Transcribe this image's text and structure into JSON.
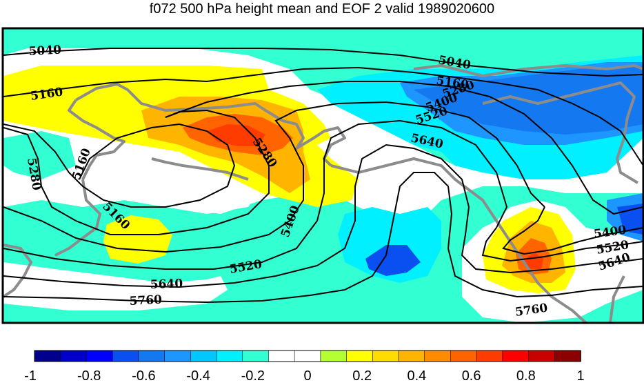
{
  "title": "f072 500 hPa height mean and EOF 2 valid 1989020600",
  "contour_labels": [
    "5040",
    "5040",
    "5160",
    "5160",
    "5160",
    "5160",
    "5280",
    "5280",
    "5280",
    "5400",
    "5400",
    "5400",
    "5520",
    "5520",
    "5520",
    "5640",
    "5640",
    "5640",
    "5760",
    "5760"
  ],
  "colorbar": {
    "colors": [
      "#00008c",
      "#0000c8",
      "#0000ff",
      "#0a50f0",
      "#1478f0",
      "#1e96ff",
      "#00c8ff",
      "#00f0ff",
      "#32ffd2",
      "#ffffff",
      "#ffffff",
      "#b4ff32",
      "#ffff00",
      "#ffdc00",
      "#ffb400",
      "#ff8c00",
      "#ff6400",
      "#ff3c00",
      "#ff0000",
      "#c80000",
      "#8c0000"
    ],
    "tick_labels": [
      "-1",
      "-0.8",
      "-0.6",
      "-0.4",
      "-0.2",
      "0",
      "0.2",
      "0.4",
      "0.6",
      "0.8",
      "1"
    ]
  },
  "colors": {
    "coastline": "#8c8c8c",
    "contour": "#000000",
    "frame": "#000000"
  }
}
